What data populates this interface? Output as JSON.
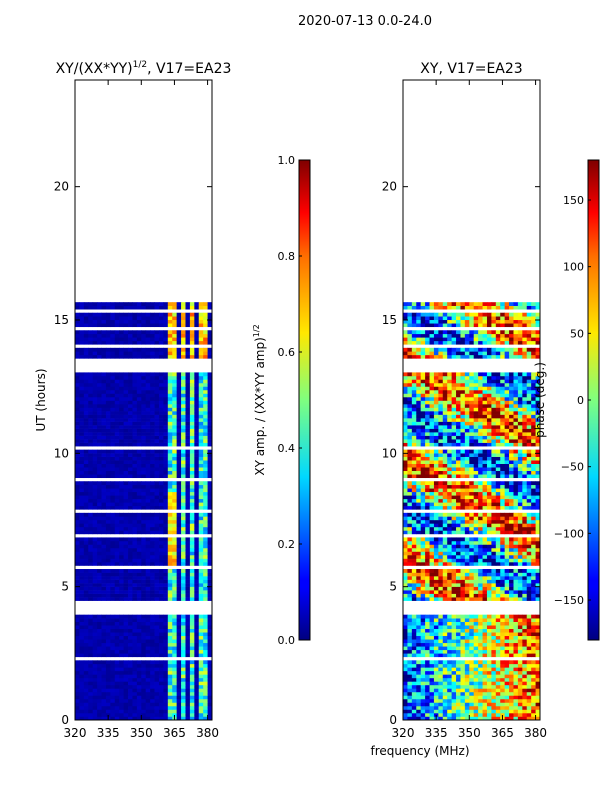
{
  "suptitle": "2020-07-13 0.0-24.0",
  "xlabel": "frequency (MHz)",
  "chart_data": [
    {
      "type": "heatmap",
      "title_main": "XY/(XX*YY)",
      "title_sup": "1/2",
      "title_rest": ", V17=EA23",
      "ylabel": "UT (hours)",
      "xlim": [
        320,
        382
      ],
      "ylim": [
        0,
        24
      ],
      "xticks": [
        320,
        335,
        350,
        365,
        380
      ],
      "yticks": [
        0,
        5,
        10,
        15,
        20
      ],
      "colorbar": {
        "label_main": "XY amp. / (XX*YY amp)",
        "label_sup": "1/2",
        "range": [
          0.0,
          1.0
        ],
        "ticks": [
          "0.0",
          "0.2",
          "0.4",
          "0.6",
          "0.8",
          "1.0"
        ],
        "tick_values": [
          0.0,
          0.2,
          0.4,
          0.6,
          0.8,
          1.0
        ]
      }
    },
    {
      "type": "heatmap",
      "title_main": "XY, V17=EA23",
      "ylabel": "",
      "xlim": [
        320,
        382
      ],
      "ylim": [
        0,
        24
      ],
      "xticks": [
        320,
        335,
        350,
        365,
        380
      ],
      "yticks": [
        0,
        5,
        10,
        15,
        20
      ],
      "colorbar": {
        "label_main": "phase (deg.)",
        "range": [
          -180,
          180
        ],
        "ticks": [
          "−150",
          "−100",
          "−50",
          "0",
          "50",
          "100",
          "150"
        ],
        "tick_values": [
          -150,
          -100,
          -50,
          0,
          50,
          100,
          150
        ]
      }
    }
  ]
}
